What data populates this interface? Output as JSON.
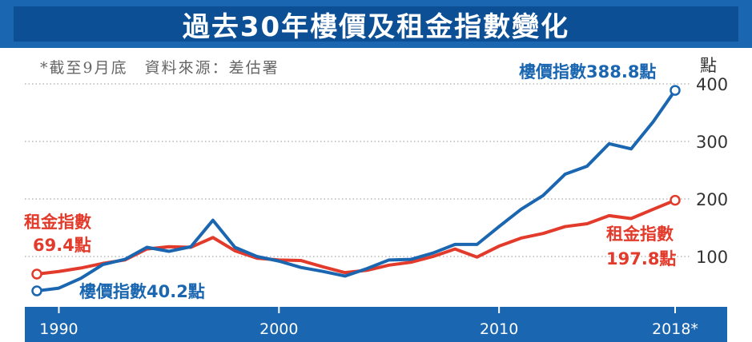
{
  "title": "過去30年樓價及租金指數變化",
  "note": "*截至9月底　資料來源：差估署",
  "unit_label": "點",
  "colors": {
    "housing": "#1a66b0",
    "rent": "#e23a2b",
    "axis_bar": "#1a66b0",
    "grid": "#b8b8b8"
  },
  "annotations": {
    "rent_start_name": "租金指數",
    "rent_start_value": "69.4點",
    "housing_start": "樓價指數40.2點",
    "housing_end": "樓價指數388.8點",
    "rent_end_name": "租金指數",
    "rent_end_value": "197.8點"
  },
  "chart_data": {
    "type": "line",
    "title": "過去30年樓價及租金指數變化",
    "ylabel": "點",
    "xlabel": "",
    "xlim": [
      1988.6,
      2020.2
    ],
    "ylim": [
      0,
      420
    ],
    "yticks": [
      100,
      200,
      300,
      400
    ],
    "xticks": [
      {
        "value": 1990,
        "label": "1990"
      },
      {
        "value": 2000,
        "label": "2000"
      },
      {
        "value": 2010,
        "label": "2010"
      },
      {
        "value": 2018,
        "label": "2018*"
      }
    ],
    "grid": "horizontal-dotted",
    "x": [
      1989,
      1990,
      1991,
      1992,
      1993,
      1994,
      1995,
      1996,
      1997,
      1998,
      1999,
      2000,
      2001,
      2002,
      2003,
      2004,
      2005,
      2006,
      2007,
      2008,
      2009,
      2010,
      2011,
      2012,
      2013,
      2014,
      2015,
      2016,
      2017,
      2018
    ],
    "series": [
      {
        "name": "樓價指數",
        "values": [
          40.2,
          45,
          62,
          86,
          95,
          116,
          109,
          117,
          163,
          116,
          100,
          92,
          81,
          74,
          66,
          79,
          94,
          95,
          106,
          121,
          121,
          152,
          182,
          206,
          243,
          257,
          296,
          287,
          334,
          388.8
        ]
      },
      {
        "name": "租金指數",
        "values": [
          69.4,
          74,
          80,
          88,
          94,
          113,
          117,
          116,
          133,
          110,
          97,
          94,
          93,
          82,
          72,
          76,
          85,
          90,
          100,
          113,
          99,
          118,
          132,
          140,
          152,
          157,
          171,
          166,
          182,
          197.8
        ]
      }
    ]
  }
}
